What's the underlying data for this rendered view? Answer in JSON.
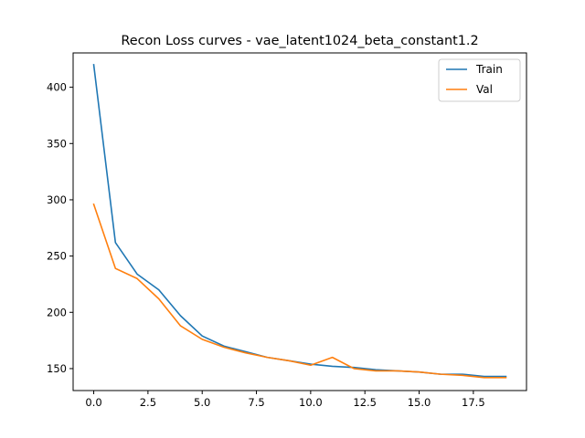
{
  "chart_data": {
    "type": "line",
    "title": "Recon Loss curves - vae_latent1024_beta_constant1.2",
    "xlabel": "",
    "ylabel": "",
    "xlim": [
      -0.95,
      19.95
    ],
    "ylim": [
      130.5,
      430.5
    ],
    "xticks": [
      0,
      2.5,
      5,
      7.5,
      10,
      12.5,
      15,
      17.5
    ],
    "xtick_labels": [
      "0.0",
      "2.5",
      "5.0",
      "7.5",
      "10.0",
      "12.5",
      "15.0",
      "17.5"
    ],
    "yticks": [
      150,
      200,
      250,
      300,
      350,
      400
    ],
    "ytick_labels": [
      "150",
      "200",
      "250",
      "300",
      "350",
      "400"
    ],
    "grid": false,
    "legend_position": "top-right",
    "x": [
      0,
      1,
      2,
      3,
      4,
      5,
      6,
      7,
      8,
      9,
      10,
      11,
      12,
      13,
      14,
      15,
      16,
      17,
      18,
      19
    ],
    "series": [
      {
        "name": "Train",
        "color": "#1f77b4",
        "values": [
          420,
          262,
          234,
          220,
          197,
          179,
          170,
          165,
          160,
          157,
          154,
          152,
          151,
          149,
          148,
          147,
          145,
          145,
          143,
          143
        ]
      },
      {
        "name": "Val",
        "color": "#ff7f0e",
        "values": [
          296,
          239,
          230,
          212,
          188,
          176,
          169,
          164,
          160,
          157,
          153,
          160,
          150,
          148,
          148,
          147,
          145,
          144,
          142,
          142
        ]
      }
    ]
  }
}
